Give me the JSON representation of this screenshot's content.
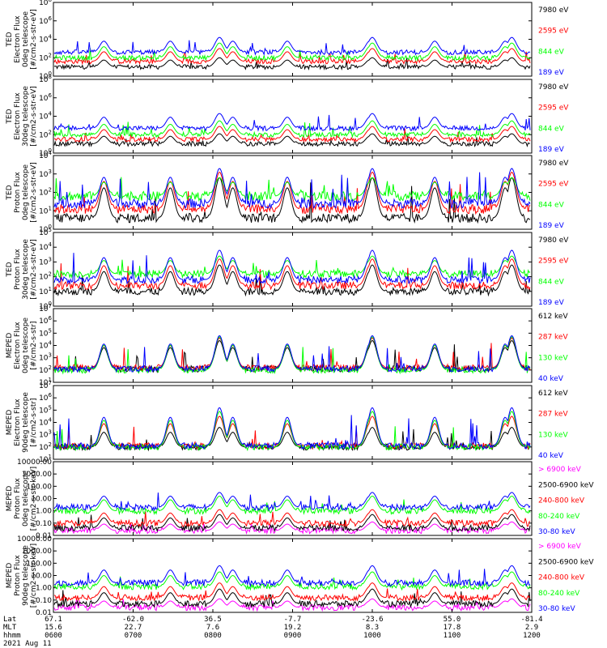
{
  "chart_data": {
    "type": "line",
    "date_label": "2021 Aug 11",
    "x_axis": {
      "rows": [
        {
          "name": "Lat",
          "values": [
            "67.1",
            "-62.0",
            "36.5",
            "-7.7",
            "-23.6",
            "55.0",
            "-81.4"
          ]
        },
        {
          "name": "MLT",
          "values": [
            "15.6",
            "22.7",
            "7.6",
            "19.2",
            "8.3",
            "17.8",
            "2.9"
          ]
        },
        {
          "name": "hhmm",
          "values": [
            "0600",
            "0700",
            "0800",
            "0900",
            "1000",
            "1100",
            "1200"
          ]
        }
      ]
    },
    "panels": [
      {
        "ylabel": [
          "TED",
          "Electron Flux",
          "0deg telescope",
          "[#/cm2-s-str-eV]"
        ],
        "scale": "log",
        "yticks": [
          "10^8",
          "10^6",
          "10^4",
          "10^2",
          "10^0"
        ],
        "ylim_exp": [
          0,
          8
        ],
        "series": [
          {
            "name": "7980 eV",
            "color": "#000000",
            "base": 1.0,
            "peak": 2.0
          },
          {
            "name": "2595 eV",
            "color": "#ff0000",
            "base": 1.6,
            "peak": 3.0
          },
          {
            "name": "844 eV",
            "color": "#00ff00",
            "base": 2.0,
            "peak": 3.6
          },
          {
            "name": "189 eV",
            "color": "#0000ff",
            "base": 2.6,
            "peak": 4.2
          }
        ]
      },
      {
        "ylabel": [
          "TED",
          "Electron Flux",
          "30deg telescope",
          "[#/cm2-s-str-eV]"
        ],
        "scale": "log",
        "yticks": [
          "10^8",
          "10^6",
          "10^4",
          "10^2",
          "10^0"
        ],
        "ylim_exp": [
          0,
          8
        ],
        "series": [
          {
            "name": "7980 eV",
            "color": "#000000",
            "base": 1.0,
            "peak": 2.1
          },
          {
            "name": "2595 eV",
            "color": "#ff0000",
            "base": 1.5,
            "peak": 2.9
          },
          {
            "name": "844 eV",
            "color": "#00ff00",
            "base": 2.0,
            "peak": 3.5
          },
          {
            "name": "189 eV",
            "color": "#0000ff",
            "base": 2.7,
            "peak": 4.3
          }
        ]
      },
      {
        "ylabel": [
          "TED",
          "Proton Flux",
          "0deg telescope",
          "[#/cm2-s-str-eV]"
        ],
        "scale": "log",
        "yticks": [
          "10^4",
          "10^3",
          "10^2",
          "10^1",
          "10^0"
        ],
        "ylim_exp": [
          0,
          4
        ],
        "series": [
          {
            "name": "7980 eV",
            "color": "#000000",
            "base": 0.6,
            "peak": 2.8
          },
          {
            "name": "2595 eV",
            "color": "#ff0000",
            "base": 1.1,
            "peak": 3.1
          },
          {
            "name": "844 eV",
            "color": "#00ff00",
            "base": 1.8,
            "peak": 2.8
          },
          {
            "name": "189 eV",
            "color": "#0000ff",
            "base": 1.4,
            "peak": 3.3
          }
        ]
      },
      {
        "ylabel": [
          "TED",
          "Proton Flux",
          "30deg telescope",
          "[#/cm2-s-str-eV]"
        ],
        "scale": "log",
        "yticks": [
          "10^5",
          "10^4",
          "10^3",
          "10^2",
          "10^1",
          "10^0"
        ],
        "ylim_exp": [
          0,
          5
        ],
        "series": [
          {
            "name": "7980 eV",
            "color": "#000000",
            "base": 1.0,
            "peak": 2.8
          },
          {
            "name": "2595 eV",
            "color": "#ff0000",
            "base": 1.4,
            "peak": 3.2
          },
          {
            "name": "844 eV",
            "color": "#00ff00",
            "base": 2.2,
            "peak": 3.4
          },
          {
            "name": "189 eV",
            "color": "#0000ff",
            "base": 1.8,
            "peak": 3.8
          }
        ]
      },
      {
        "ylabel": [
          "MEPED",
          "Electron Flux",
          "0deg telescope",
          "[#/cm2-s-str]"
        ],
        "scale": "log",
        "yticks": [
          "10^7",
          "10^6",
          "10^5",
          "10^4",
          "10^3",
          "10^2",
          "10^1"
        ],
        "ylim_exp": [
          1,
          7
        ],
        "series": [
          {
            "name": "612 keV",
            "color": "#000000",
            "base": 2.1,
            "peak": 4.4
          },
          {
            "name": "287 keV",
            "color": "#ff0000",
            "base": 2.2,
            "peak": 4.6
          },
          {
            "name": "130 keV",
            "color": "#00ff00",
            "base": 2.0,
            "peak": 4.7
          },
          {
            "name": "40 keV",
            "color": "#0000ff",
            "base": 2.1,
            "peak": 4.8
          }
        ]
      },
      {
        "ylabel": [
          "MEPED",
          "Electron Flux",
          "90deg telescope",
          "[#/cm2-s-str]"
        ],
        "scale": "log",
        "yticks": [
          "10^7",
          "10^6",
          "10^5",
          "10^4",
          "10^3",
          "10^2",
          "10^1"
        ],
        "ylim_exp": [
          1,
          7
        ],
        "series": [
          {
            "name": "612 keV",
            "color": "#000000",
            "base": 2.0,
            "peak": 3.6
          },
          {
            "name": "287 keV",
            "color": "#ff0000",
            "base": 2.1,
            "peak": 4.5
          },
          {
            "name": "130 keV",
            "color": "#00ff00",
            "base": 2.0,
            "peak": 4.9
          },
          {
            "name": "40 keV",
            "color": "#0000ff",
            "base": 2.1,
            "peak": 5.2
          }
        ]
      },
      {
        "ylabel": [
          "MEPED",
          "Proton Flux",
          "0deg telescope",
          "[#/cm2-s-str-keV]"
        ],
        "scale": "log",
        "yticks": [
          "10000.00",
          "1000.00",
          "100.00",
          "10.00",
          "1.00",
          "0.10",
          "0.01"
        ],
        "ylim_exp": [
          -2,
          4
        ],
        "series": [
          {
            "name": "> 6900 keV",
            "color": "#ff00ff",
            "base": -1.6,
            "peak": -0.9
          },
          {
            "name": "2500-6900 keV",
            "color": "#000000",
            "base": -1.4,
            "peak": -0.3
          },
          {
            "name": "240-800 keV",
            "color": "#ff0000",
            "base": -1.0,
            "peak": 0.1
          },
          {
            "name": "80-240 keV",
            "color": "#00ff00",
            "base": 0.0,
            "peak": 1.2
          },
          {
            "name": "30-80 keV",
            "color": "#0000ff",
            "base": 0.3,
            "peak": 1.5
          }
        ]
      },
      {
        "ylabel": [
          "MEPED",
          "Proton Flux",
          "90deg telescope",
          "[#/cm2-s-str-keV]"
        ],
        "scale": "log",
        "yticks": [
          "10000.00",
          "1000.00",
          "100.00",
          "10.00",
          "1.00",
          "0.10",
          "0.01"
        ],
        "ylim_exp": [
          -2,
          4
        ],
        "series": [
          {
            "name": "> 6900 keV",
            "color": "#ff00ff",
            "base": -1.6,
            "peak": -0.9
          },
          {
            "name": "2500-6900 keV",
            "color": "#000000",
            "base": -1.3,
            "peak": -0.1
          },
          {
            "name": "240-800 keV",
            "color": "#ff0000",
            "base": -0.8,
            "peak": 0.4
          },
          {
            "name": "80-240 keV",
            "color": "#00ff00",
            "base": 0.1,
            "peak": 1.3
          },
          {
            "name": "30-80 keV",
            "color": "#0000ff",
            "base": 0.4,
            "peak": 1.8
          }
        ]
      }
    ],
    "pass_centers_hhmm": [
      "0638",
      "0728",
      "0815",
      "0856",
      "0958",
      "1047",
      "1140"
    ],
    "peak_passes_hhmm": [
      "0805",
      "1000",
      "1145"
    ]
  }
}
